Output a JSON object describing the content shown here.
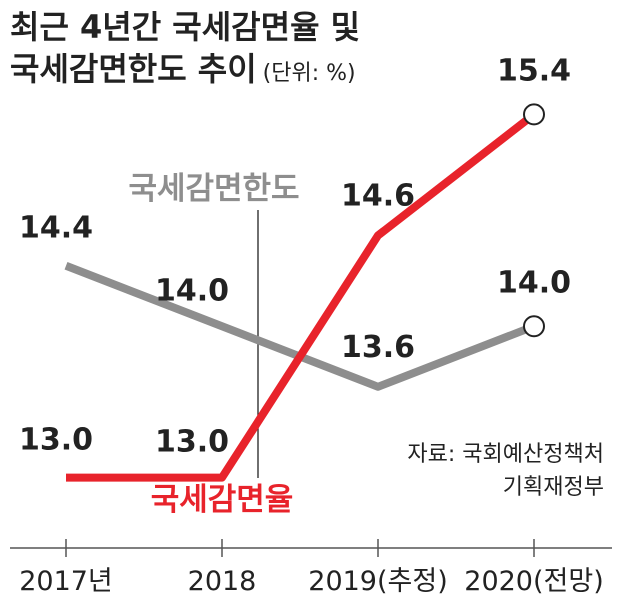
{
  "title": {
    "line1": "최근 4년간 국세감면율 및",
    "line2": "국세감면한도 추이",
    "unit": "(단위: %)"
  },
  "source": {
    "line1": "자료: 국회예산정책처",
    "line2": "기획재정부"
  },
  "colors": {
    "limit": "#8e8e8e",
    "rate": "#e8232b",
    "text": "#222222",
    "axis": "#555555"
  },
  "chart_data": {
    "type": "line",
    "categories": [
      "2017년",
      "2018",
      "2019(추정)",
      "2020(전망)"
    ],
    "series": [
      {
        "name": "국세감면한도",
        "values": [
          14.4,
          14.0,
          13.6,
          14.0
        ],
        "value_labels": [
          "14.4",
          "14.0",
          "13.6",
          "14.0"
        ]
      },
      {
        "name": "국세감면율",
        "values": [
          13.0,
          13.0,
          14.6,
          15.4
        ],
        "value_labels": [
          "13.0",
          "13.0",
          "14.6",
          "15.4"
        ]
      }
    ],
    "ylim": [
      12.7,
      15.7
    ],
    "grid": false
  }
}
